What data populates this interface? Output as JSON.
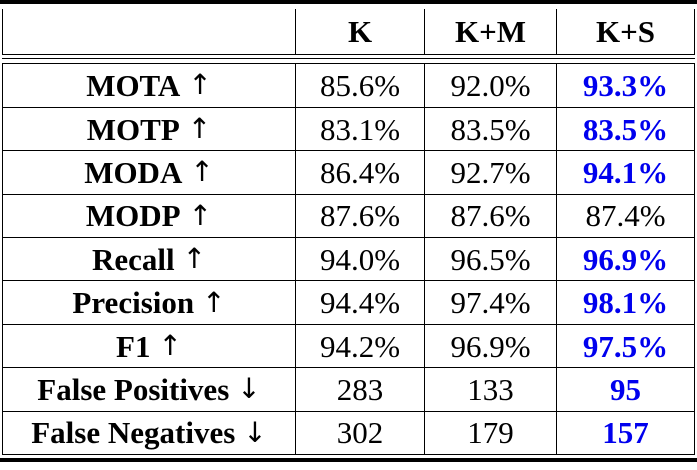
{
  "figure": {
    "kind": "paper-results-table"
  },
  "colors": {
    "highlight_blue": "#0000EE",
    "text_black": "#000000",
    "rule_black": "#000000",
    "background": "#FFFFFF"
  },
  "table": {
    "columns": [
      "",
      "K",
      "K+M",
      "K+S"
    ],
    "rows": [
      {
        "label": "MOTA",
        "arrow": "↑",
        "values": [
          "85.6%",
          "92.0%",
          "93.3%"
        ],
        "highlight_col": 2
      },
      {
        "label": "MOTP",
        "arrow": "↑",
        "values": [
          "83.1%",
          "83.5%",
          "83.5%"
        ],
        "highlight_col": 2
      },
      {
        "label": "MODA",
        "arrow": "↑",
        "values": [
          "86.4%",
          "92.7%",
          "94.1%"
        ],
        "highlight_col": 2
      },
      {
        "label": "MODP",
        "arrow": "↑",
        "values": [
          "87.6%",
          "87.6%",
          "87.4%"
        ],
        "highlight_col": null
      },
      {
        "label": "Recall",
        "arrow": "↑",
        "values": [
          "94.0%",
          "96.5%",
          "96.9%"
        ],
        "highlight_col": 2
      },
      {
        "label": "Precision",
        "arrow": "↑",
        "values": [
          "94.4%",
          "97.4%",
          "98.1%"
        ],
        "highlight_col": 2
      },
      {
        "label": "F1",
        "arrow": "↑",
        "values": [
          "94.2%",
          "96.9%",
          "97.5%"
        ],
        "highlight_col": 2
      },
      {
        "label": "False Positives",
        "arrow": "↓",
        "values": [
          "283",
          "133",
          "95"
        ],
        "highlight_col": 2
      },
      {
        "label": "False Negatives",
        "arrow": "↓",
        "values": [
          "302",
          "179",
          "157"
        ],
        "highlight_col": 2
      }
    ]
  },
  "chart_data": {
    "type": "table",
    "title": "",
    "categories": [
      "MOTA",
      "MOTP",
      "MODA",
      "MODP",
      "Recall",
      "Precision",
      "F1",
      "False Positives",
      "False Negatives"
    ],
    "series": [
      {
        "name": "K",
        "values": [
          "85.6%",
          "83.1%",
          "86.4%",
          "87.6%",
          "94.0%",
          "94.4%",
          "94.2%",
          "283",
          "302"
        ]
      },
      {
        "name": "K+M",
        "values": [
          "92.0%",
          "83.5%",
          "92.7%",
          "87.6%",
          "96.5%",
          "97.4%",
          "96.9%",
          "133",
          "179"
        ]
      },
      {
        "name": "K+S",
        "values": [
          "93.3%",
          "83.5%",
          "94.1%",
          "87.4%",
          "96.9%",
          "98.1%",
          "97.5%",
          "95",
          "157"
        ]
      }
    ]
  }
}
